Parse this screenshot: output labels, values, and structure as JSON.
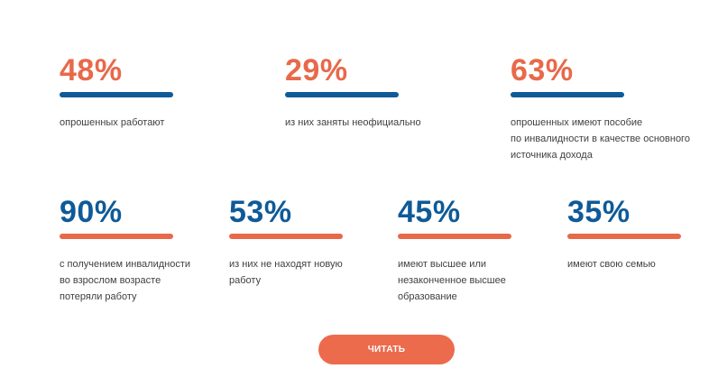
{
  "colors": {
    "accent_orange": "#e8694a",
    "accent_blue": "#0f5a97",
    "button": "#ec6b4d"
  },
  "stats": [
    {
      "value": "48%",
      "caption": [
        "опрошенных работают"
      ]
    },
    {
      "value": "29%",
      "caption": [
        "из них заняты неофициально"
      ]
    },
    {
      "value": "63%",
      "caption": [
        "опрошенных имеют пособие",
        "по инвалидности в качестве основного",
        "источника дохода"
      ]
    },
    {
      "value": "90%",
      "caption": [
        "с получением инвалидности",
        "во взрослом возрасте",
        "потеряли работу"
      ]
    },
    {
      "value": "53%",
      "caption": [
        "из них не находят новую",
        "работу"
      ]
    },
    {
      "value": "45%",
      "caption": [
        "имеют высшее или",
        "незаконченное высшее",
        "образование"
      ]
    },
    {
      "value": "35%",
      "caption": [
        "имеют свою семью"
      ]
    }
  ],
  "read_button": {
    "label": "ЧИТАТЬ"
  }
}
